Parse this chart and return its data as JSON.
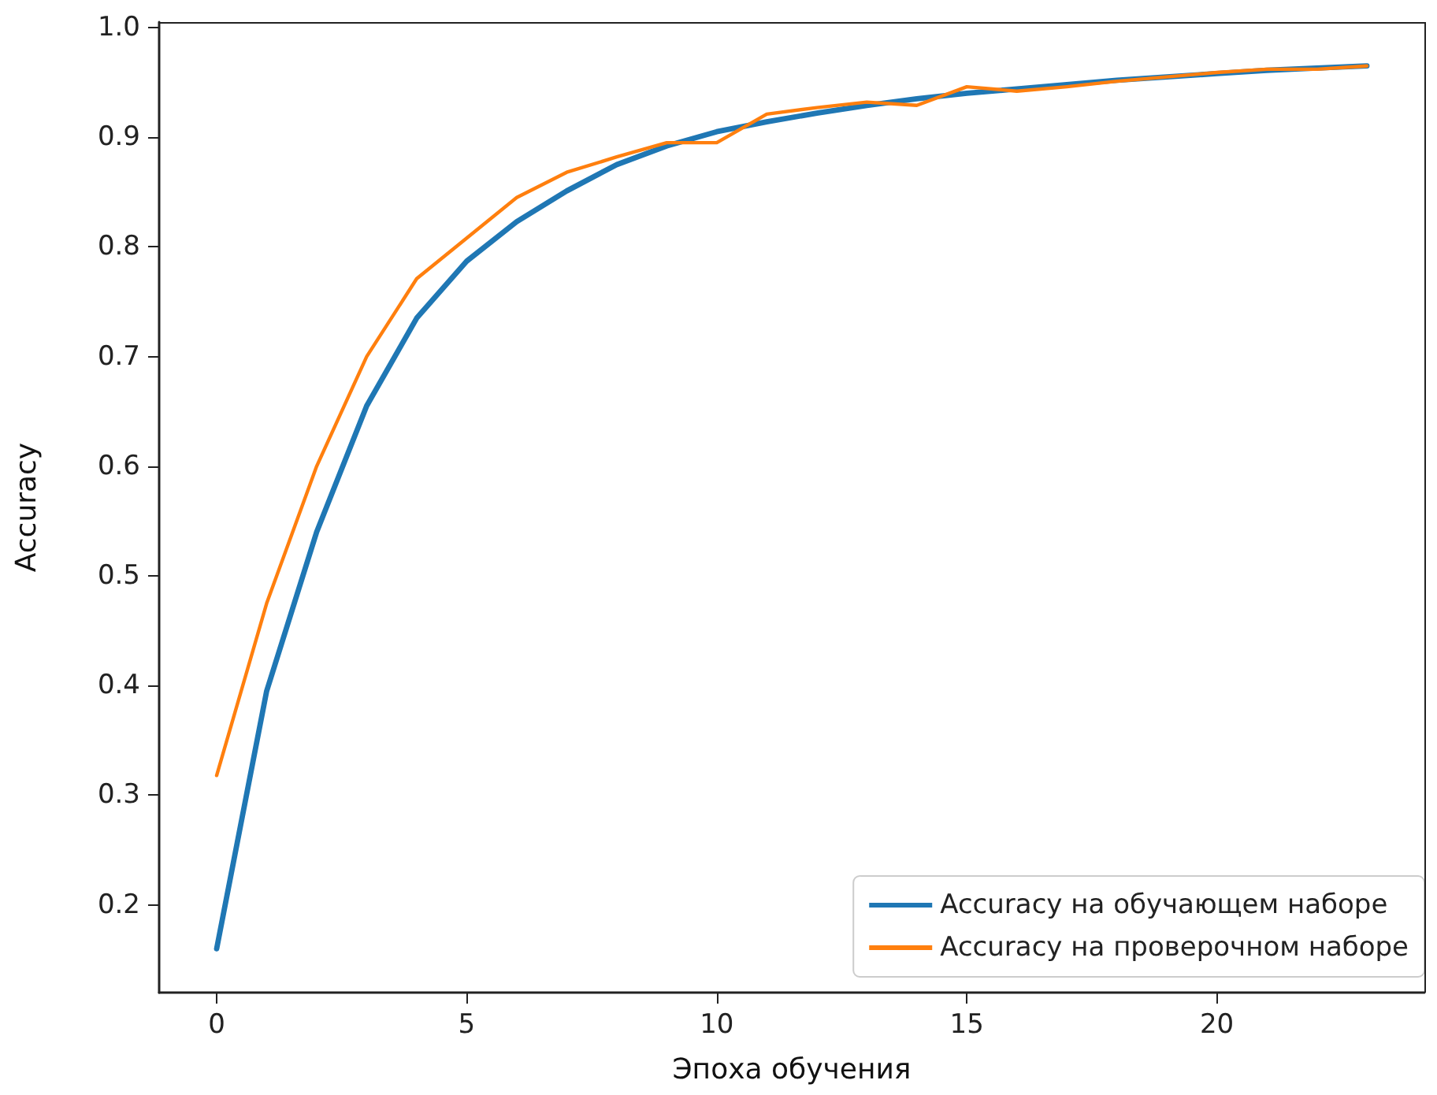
{
  "chart_data": {
    "type": "line",
    "xlabel": "Эпоха обучения",
    "ylabel": "Accuracy",
    "x": [
      0,
      1,
      2,
      3,
      4,
      5,
      6,
      7,
      8,
      9,
      10,
      11,
      12,
      13,
      14,
      15,
      16,
      17,
      18,
      19,
      20,
      21,
      22,
      23
    ],
    "series": [
      {
        "name": "Accuracy на обучающем наборе",
        "color": "#1f77b4",
        "values": [
          0.16,
          0.395,
          0.54,
          0.655,
          0.735,
          0.787,
          0.823,
          0.851,
          0.875,
          0.892,
          0.905,
          0.914,
          0.922,
          0.929,
          0.935,
          0.94,
          0.944,
          0.948,
          0.952,
          0.955,
          0.958,
          0.961,
          0.963,
          0.965
        ]
      },
      {
        "name": "Accuracy на проверочном наборе",
        "color": "#ff7f0e",
        "values": [
          0.318,
          0.475,
          0.6,
          0.7,
          0.771,
          0.808,
          0.845,
          0.868,
          0.882,
          0.895,
          0.895,
          0.921,
          0.927,
          0.932,
          0.929,
          0.946,
          0.942,
          0.946,
          0.951,
          0.955,
          0.959,
          0.962,
          0.962,
          0.965
        ]
      }
    ],
    "xlim": [
      -1.15,
      24.15
    ],
    "xticks": [
      0,
      5,
      10,
      15,
      20
    ],
    "ylim": [
      0.12,
      1.005
    ],
    "yticks": [
      0.2,
      0.3,
      0.4,
      0.5,
      0.6,
      0.7,
      0.8,
      0.9,
      {
        "value": 1,
        "label": "1.0"
      }
    ],
    "grid": false,
    "legend": "bottom right",
    "marker": "none",
    "line_style": "solid"
  }
}
